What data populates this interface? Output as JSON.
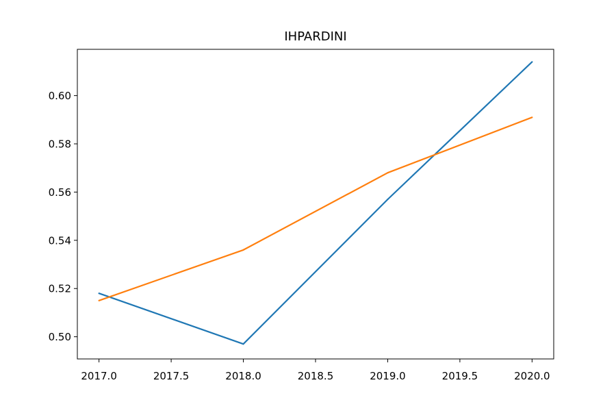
{
  "chart_data": {
    "type": "line",
    "title": "IHPARDINI",
    "xlabel": "",
    "ylabel": "",
    "x": [
      2017,
      2018,
      2019,
      2020
    ],
    "xlim": [
      2016.85,
      2020.15
    ],
    "ylim": [
      0.4908,
      0.6192
    ],
    "x_ticks": [
      2017.0,
      2017.5,
      2018.0,
      2018.5,
      2019.0,
      2019.5,
      2020.0
    ],
    "x_tick_labels": [
      "2017.0",
      "2017.5",
      "2018.0",
      "2018.5",
      "2019.0",
      "2019.5",
      "2020.0"
    ],
    "y_ticks": [
      0.5,
      0.52,
      0.54,
      0.56,
      0.58,
      0.6
    ],
    "y_tick_labels": [
      "0.50",
      "0.52",
      "0.54",
      "0.56",
      "0.58",
      "0.60"
    ],
    "grid": false,
    "legend": "none",
    "series": [
      {
        "color": "#1f77b4",
        "values": [
          0.518,
          0.497,
          0.557,
          0.614
        ]
      },
      {
        "color": "#ff7f0e",
        "values": [
          0.515,
          0.536,
          0.568,
          0.591
        ]
      }
    ]
  }
}
